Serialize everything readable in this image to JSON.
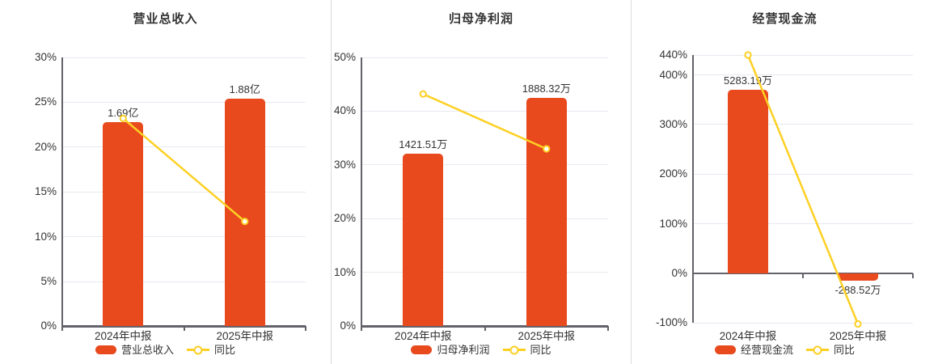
{
  "colors": {
    "bar": "#e8491d",
    "line": "#fdd024",
    "grid": "#e6e9f0",
    "axis_line": "#62626b",
    "text": "#333333",
    "divider": "#dcdcdc",
    "marker_fill": "#ffffff",
    "background": "#ffffff"
  },
  "chart_data": [
    {
      "type": "bar",
      "title": "营业总收入",
      "categories": [
        "2024年中报",
        "2025年中报"
      ],
      "bar_series": {
        "name": "营业总收入",
        "value_labels": [
          "1.69亿",
          "1.88亿"
        ],
        "axis_heights_pct": [
          22.8,
          25.4
        ]
      },
      "line_series": {
        "name": "同比",
        "values_pct": [
          23.2,
          11.7
        ]
      },
      "ylim": [
        0,
        30
      ],
      "y_ticks": [
        {
          "v": 0,
          "label": "0%"
        },
        {
          "v": 5,
          "label": "5%"
        },
        {
          "v": 10,
          "label": "10%"
        },
        {
          "v": 15,
          "label": "15%"
        },
        {
          "v": 20,
          "label": "20%"
        },
        {
          "v": 25,
          "label": "25%"
        },
        {
          "v": 30,
          "label": "30%"
        }
      ],
      "legend_position": "bottom",
      "grid": true
    },
    {
      "type": "bar",
      "title": "归母净利润",
      "categories": [
        "2024年中报",
        "2025年中报"
      ],
      "bar_series": {
        "name": "归母净利润",
        "value_labels": [
          "1421.51万",
          "1888.32万"
        ],
        "axis_heights_pct": [
          32.1,
          42.5
        ]
      },
      "line_series": {
        "name": "同比",
        "values_pct": [
          43.2,
          33.0
        ]
      },
      "ylim": [
        0,
        50
      ],
      "y_ticks": [
        {
          "v": 0,
          "label": "0%"
        },
        {
          "v": 10,
          "label": "10%"
        },
        {
          "v": 20,
          "label": "20%"
        },
        {
          "v": 30,
          "label": "30%"
        },
        {
          "v": 40,
          "label": "40%"
        },
        {
          "v": 50,
          "label": "50%"
        }
      ],
      "legend_position": "bottom",
      "grid": true
    },
    {
      "type": "bar",
      "title": "经营现金流",
      "categories": [
        "2024年中报",
        "2025年中报"
      ],
      "bar_series": {
        "name": "经营现金流",
        "value_labels": [
          "5283.19万",
          "-288.52万"
        ],
        "axis_heights_pct": [
          370,
          -14
        ]
      },
      "line_series": {
        "name": "同比",
        "values_pct": [
          440,
          -102
        ]
      },
      "ylim": [
        -100,
        440
      ],
      "y_ticks": [
        {
          "v": -100,
          "label": "-100%"
        },
        {
          "v": 0,
          "label": "0%"
        },
        {
          "v": 100,
          "label": "100%"
        },
        {
          "v": 200,
          "label": "200%"
        },
        {
          "v": 300,
          "label": "300%"
        },
        {
          "v": 400,
          "label": "400%"
        },
        {
          "v": 440,
          "label": "440%"
        }
      ],
      "legend_position": "bottom",
      "grid": true
    }
  ]
}
